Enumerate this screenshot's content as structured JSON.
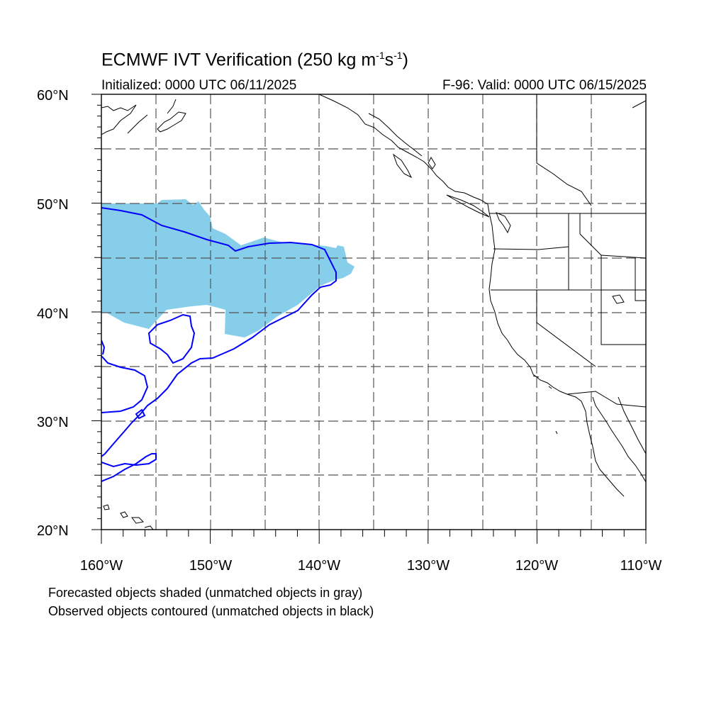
{
  "title": {
    "main": "ECMWF IVT Verification (250 kg m",
    "exp1": "-1",
    "mid": "s",
    "exp2": "-1",
    "close": ")"
  },
  "initialized": "Initialized: 0000 UTC 06/11/2025",
  "valid": "F-96: Valid: 0000 UTC 06/15/2025",
  "lat_labels": [
    "60°N",
    "50°N",
    "40°N",
    "30°N",
    "20°N"
  ],
  "lon_labels": [
    "160°W",
    "150°W",
    "140°W",
    "130°W",
    "120°W",
    "110°W"
  ],
  "footnotes": [
    "Forecasted objects shaded (unmatched objects in gray)",
    "Observed objects contoured (unmatched objects in black)"
  ],
  "colors": {
    "forecast_fill": "#87CEEB",
    "observed_contour": "#0000FF",
    "coastline": "#000000",
    "grid": "#555555"
  }
}
